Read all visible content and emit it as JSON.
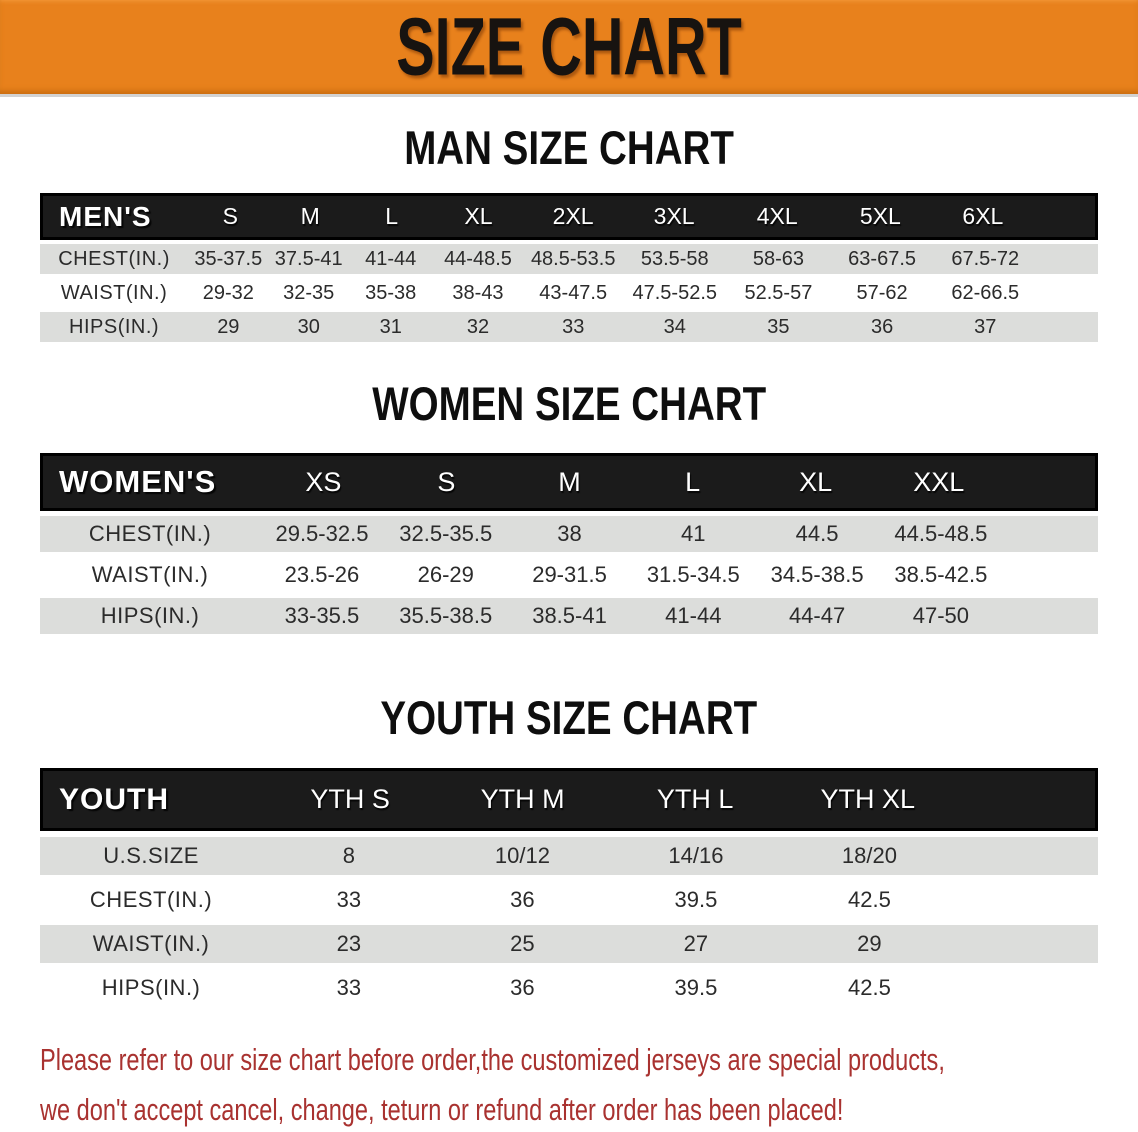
{
  "banner": {
    "title": "SIZE CHART",
    "bg_color": "#e8811c",
    "text_color": "#171310"
  },
  "colors": {
    "table_header_bg": "#1b1b1b",
    "row_alt_bg": "#dcdddb",
    "footer_text": "#a93230"
  },
  "tables": [
    {
      "heading": "MAN SIZE CHART",
      "corner_label": "MEN'S",
      "sizes": [
        "S",
        "M",
        "L",
        "XL",
        "2XL",
        "3XL",
        "4XL",
        "5XL",
        "6XL"
      ],
      "rows": [
        {
          "label": "CHEST(IN.)",
          "values": [
            "35-37.5",
            "37.5-41",
            "41-44",
            "44-48.5",
            "48.5-53.5",
            "53.5-58",
            "58-63",
            "63-67.5",
            "67.5-72"
          ]
        },
        {
          "label": "WAIST(IN.)",
          "values": [
            "29-32",
            "32-35",
            "35-38",
            "38-43",
            "43-47.5",
            "47.5-52.5",
            "52.5-57",
            "57-62",
            "62-66.5"
          ]
        },
        {
          "label": "HIPS(IN.)",
          "values": [
            "29",
            "30",
            "31",
            "32",
            "33",
            "34",
            "35",
            "36",
            "37"
          ]
        }
      ]
    },
    {
      "heading": "WOMEN SIZE CHART",
      "corner_label": "WOMEN'S",
      "sizes": [
        "XS",
        "S",
        "M",
        "L",
        "XL",
        "XXL"
      ],
      "rows": [
        {
          "label": "CHEST(IN.)",
          "values": [
            "29.5-32.5",
            "32.5-35.5",
            "38",
            "41",
            "44.5",
            "44.5-48.5"
          ]
        },
        {
          "label": "WAIST(IN.)",
          "values": [
            "23.5-26",
            "26-29",
            "29-31.5",
            "31.5-34.5",
            "34.5-38.5",
            "38.5-42.5"
          ]
        },
        {
          "label": "HIPS(IN.)",
          "values": [
            "33-35.5",
            "35.5-38.5",
            "38.5-41",
            "41-44",
            "44-47",
            "47-50"
          ]
        }
      ]
    },
    {
      "heading": "YOUTH SIZE CHART",
      "corner_label": "YOUTH",
      "sizes": [
        "YTH S",
        "YTH M",
        "YTH L",
        "YTH XL"
      ],
      "rows": [
        {
          "label": "U.S.SIZE",
          "values": [
            "8",
            "10/12",
            "14/16",
            "18/20"
          ]
        },
        {
          "label": "CHEST(IN.)",
          "values": [
            "33",
            "36",
            "39.5",
            "42.5"
          ]
        },
        {
          "label": "WAIST(IN.)",
          "values": [
            "23",
            "25",
            "27",
            "29"
          ]
        },
        {
          "label": "HIPS(IN.)",
          "values": [
            "33",
            "36",
            "39.5",
            "42.5"
          ]
        }
      ]
    }
  ],
  "footer": {
    "line1": "Please refer to our size chart before order,the customized jerseys are special products,",
    "line2": "we don't accept cancel, change, teturn or refund after order has been placed!"
  }
}
